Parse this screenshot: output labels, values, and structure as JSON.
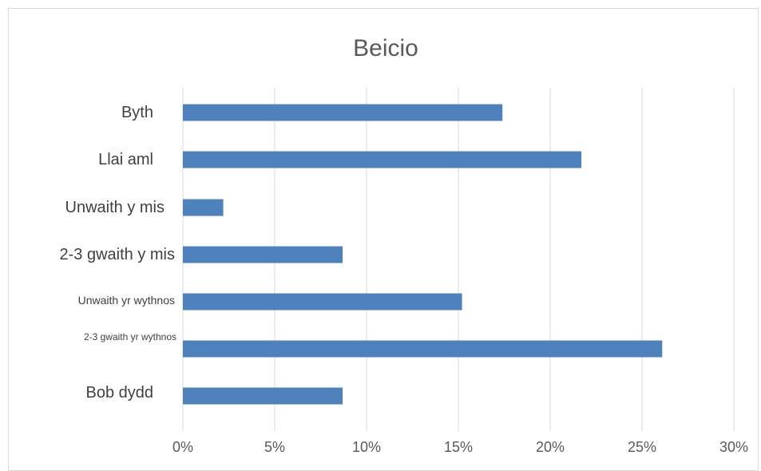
{
  "chart_data": {
    "type": "bar",
    "orientation": "horizontal",
    "title": "Beicio",
    "categories": [
      "Byth",
      "Llai aml",
      "Unwaith y mis",
      "2-3 gwaith y mis",
      "Unwaith yr wythnos",
      "2-3 gwaith yr wythnos",
      "Bob dydd"
    ],
    "values": [
      17.4,
      21.7,
      2.2,
      8.7,
      15.2,
      26.1,
      8.7
    ],
    "xlabel": "",
    "ylabel": "",
    "xlim": [
      0,
      30
    ],
    "x_ticks": [
      "0%",
      "5%",
      "10%",
      "15%",
      "20%",
      "25%",
      "30%"
    ],
    "grid": true,
    "legend": "none",
    "bar_color": "#4f81bd",
    "grid_color": "#d9d9d9"
  }
}
